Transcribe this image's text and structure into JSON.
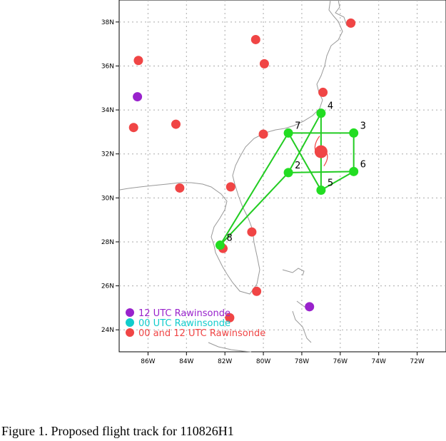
{
  "caption": "Figure 1. Proposed flight track for 110826H1",
  "map": {
    "lon_range": [
      -87.5,
      -70.5
    ],
    "lat_range": [
      23,
      39
    ],
    "lat_ticks": [
      {
        "value": 24,
        "label": "24N"
      },
      {
        "value": 26,
        "label": "26N"
      },
      {
        "value": 28,
        "label": "28N"
      },
      {
        "value": 30,
        "label": "30N"
      },
      {
        "value": 32,
        "label": "32N"
      },
      {
        "value": 34,
        "label": "34N"
      },
      {
        "value": 36,
        "label": "36N"
      },
      {
        "value": 38,
        "label": "38N"
      }
    ],
    "lon_ticks": [
      {
        "value": -86,
        "label": "86W"
      },
      {
        "value": -84,
        "label": "84W"
      },
      {
        "value": -82,
        "label": "82W"
      },
      {
        "value": -80,
        "label": "80W"
      },
      {
        "value": -78,
        "label": "78W"
      },
      {
        "value": -76,
        "label": "76W"
      },
      {
        "value": -74,
        "label": "74W"
      },
      {
        "value": -72,
        "label": "72W"
      }
    ],
    "grid": true,
    "colors": {
      "track": "#22cc22",
      "waypoint": "#22dd22",
      "rawinsonde_00_12": "#f04545",
      "rawinsonde_12": "#9922cc",
      "rawinsonde_00": "#11cccc",
      "coast": "#999999",
      "storm_center": "#f04545"
    },
    "storm_center": {
      "lon": -77.0,
      "lat": 32.1
    },
    "waypoints": [
      {
        "id": "2",
        "label": "2",
        "lon": -78.7,
        "lat": 31.15
      },
      {
        "id": "3",
        "label": "3",
        "lon": -75.3,
        "lat": 32.95
      },
      {
        "id": "4",
        "label": "4",
        "lon": -77.0,
        "lat": 33.85
      },
      {
        "id": "5",
        "label": "5",
        "lon": -77.0,
        "lat": 30.35
      },
      {
        "id": "6",
        "label": "6",
        "lon": -75.3,
        "lat": 31.2
      },
      {
        "id": "7",
        "label": "7",
        "lon": -78.7,
        "lat": 32.95
      },
      {
        "id": "8",
        "label": "8",
        "lon": -82.25,
        "lat": 27.85
      }
    ],
    "track_segments": [
      [
        "8",
        "2"
      ],
      [
        "8",
        "7"
      ],
      [
        "7",
        "3"
      ],
      [
        "3",
        "6"
      ],
      [
        "6",
        "5"
      ],
      [
        "5",
        "4"
      ],
      [
        "4",
        "2"
      ],
      [
        "2",
        "6"
      ],
      [
        "7",
        "5"
      ]
    ],
    "rawinsondes_00_12": [
      {
        "lon": -75.45,
        "lat": 37.95
      },
      {
        "lon": -80.4,
        "lat": 37.2
      },
      {
        "lon": -79.95,
        "lat": 36.1
      },
      {
        "lon": -86.5,
        "lat": 36.25
      },
      {
        "lon": -76.9,
        "lat": 34.8
      },
      {
        "lon": -84.55,
        "lat": 33.35
      },
      {
        "lon": -86.75,
        "lat": 33.2
      },
      {
        "lon": -80.0,
        "lat": 32.9
      },
      {
        "lon": -84.35,
        "lat": 30.45
      },
      {
        "lon": -81.7,
        "lat": 30.5
      },
      {
        "lon": -80.6,
        "lat": 28.45
      },
      {
        "lon": -82.1,
        "lat": 27.7
      },
      {
        "lon": -80.35,
        "lat": 25.75
      },
      {
        "lon": -81.75,
        "lat": 24.55
      }
    ],
    "rawinsondes_12": [
      {
        "lon": -86.55,
        "lat": 34.6
      },
      {
        "lon": -77.6,
        "lat": 25.05
      }
    ],
    "legend": [
      {
        "key": "r12",
        "label": "12 UTC Rawinsonde",
        "color": "#9922cc"
      },
      {
        "key": "r00",
        "label": "00 UTC Rawinsonde",
        "color": "#11cccc"
      },
      {
        "key": "r0012",
        "label": "00 and 12 UTC Rawinsonde",
        "color": "#f04545"
      }
    ]
  }
}
